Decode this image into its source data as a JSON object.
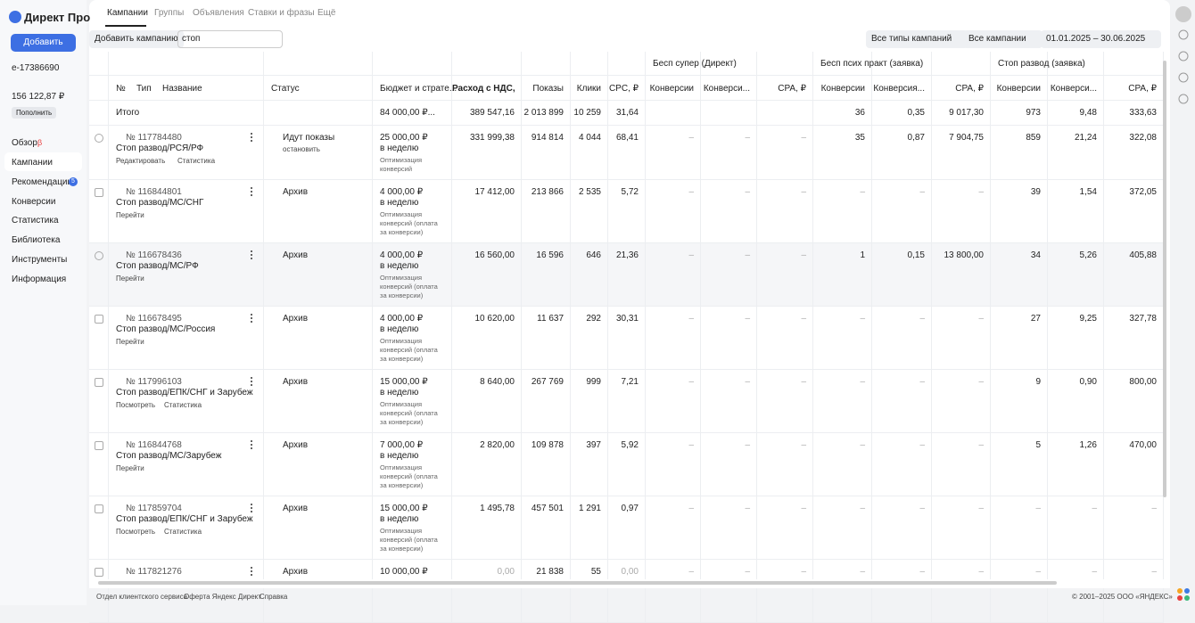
{
  "logo": "Директ Про",
  "sidebar": {
    "add_button": "Добавить",
    "account": "e-17386690",
    "balance": "156 122,87 ₽",
    "top_up": "Пополнить",
    "nav": [
      "Обзор",
      "Кампании",
      "Рекомендации",
      "Конверсии",
      "Статистика",
      "Библиотека",
      "Инструменты",
      "Информация"
    ],
    "overview_badge": "β",
    "recommendations_badge": "5"
  },
  "tabs": [
    "Кампании",
    "Группы",
    "Объявления",
    "Ставки и фразы",
    "Ещё"
  ],
  "toolbar": {
    "add_campaign": "Добавить кампанию",
    "search": "стоп",
    "campaign_types": "Все типы кампаний",
    "campaigns_filter": "Все кампании",
    "date_range": "01.01.2025 – 30.06.2025"
  },
  "table": {
    "group_headers": [
      "Бесп супер (Директ)",
      "Бесп псих практ (заявка)",
      "Стоп развод (заявка)"
    ],
    "headers": [
      "№",
      "Тип",
      "Название",
      "Статус",
      "Бюджет и страте...",
      "Расход с НДС, ₽",
      "Показы",
      "Клики",
      "CPC, ₽",
      "Конверсии",
      "Конверси...",
      "CPA, ₽",
      "Конверсии",
      "Конверсия...",
      "CPA, ₽",
      "Конверсии",
      "Конверси...",
      "CPA, ₽"
    ],
    "total": {
      "label": "Итого",
      "budget": "84 000,00 ₽...",
      "spend": "389 547,16",
      "shows": "2 013 899",
      "clicks": "10 259",
      "cpc": "31,64",
      "group2": [
        "36",
        "0,35",
        "9 017,30"
      ],
      "group3": [
        "973",
        "9,48",
        "333,63"
      ]
    },
    "rows": [
      {
        "number": "№ 117784480",
        "name": "Стоп развод/РСЯ/РФ",
        "links": [
          "Редактировать",
          "Статистика"
        ],
        "status": "Идут показы",
        "status_action": "остановить",
        "budget": "25 000,00 ₽",
        "period": "в неделю",
        "strategy": "Оптимизация конверсий",
        "cells": [
          "331 999,38",
          "914 814",
          "4 044",
          "68,41",
          "–",
          "–",
          "–",
          "35",
          "0,87",
          "7 904,75",
          "859",
          "21,24",
          "322,08"
        ]
      },
      {
        "number": "№ 116844801",
        "name": "Стоп развод/МС/СНГ",
        "links": [
          "Перейти"
        ],
        "status": "Архив",
        "budget": "4 000,00 ₽",
        "period": "в неделю",
        "strategy": "Оптимизация конверсий (оплата за конверсии)",
        "cells": [
          "17 412,00",
          "213 866",
          "2 535",
          "5,72",
          "–",
          "–",
          "–",
          "–",
          "–",
          "–",
          "39",
          "1,54",
          "372,05"
        ]
      },
      {
        "number": "№ 116678436",
        "name": "Стоп развод/МС/РФ",
        "links": [
          "Перейти"
        ],
        "status": "Архив",
        "budget": "4 000,00 ₽",
        "period": "в неделю",
        "strategy": "Оптимизация конверсий (оплата за конверсии)",
        "cells": [
          "16 560,00",
          "16 596",
          "646",
          "21,36",
          "–",
          "–",
          "–",
          "1",
          "0,15",
          "13 800,00",
          "34",
          "5,26",
          "405,88"
        ]
      },
      {
        "number": "№ 116678495",
        "name": "Стоп развод/МС/Россия",
        "links": [
          "Перейти"
        ],
        "status": "Архив",
        "budget": "4 000,00 ₽",
        "period": "в неделю",
        "strategy": "Оптимизация конверсий (оплата за конверсии)",
        "cells": [
          "10 620,00",
          "11 637",
          "292",
          "30,31",
          "–",
          "–",
          "–",
          "–",
          "–",
          "–",
          "27",
          "9,25",
          "327,78"
        ]
      },
      {
        "number": "№ 117996103",
        "name": "Стоп развод/ЕПК/СНГ и Зарубеж",
        "links": [
          "Посмотреть",
          "Статистика"
        ],
        "status": "Архив",
        "budget": "15 000,00 ₽",
        "period": "в неделю",
        "strategy": "Оптимизация конверсий (оплата за конверсии)",
        "cells": [
          "8 640,00",
          "267 769",
          "999",
          "7,21",
          "–",
          "–",
          "–",
          "–",
          "–",
          "–",
          "9",
          "0,90",
          "800,00"
        ]
      },
      {
        "number": "№ 116844768",
        "name": "Стоп развод/МС/Зарубеж",
        "links": [
          "Перейти"
        ],
        "status": "Архив",
        "budget": "7 000,00 ₽",
        "period": "в неделю",
        "strategy": "Оптимизация конверсий (оплата за конверсии)",
        "cells": [
          "2 820,00",
          "109 878",
          "397",
          "5,92",
          "–",
          "–",
          "–",
          "–",
          "–",
          "–",
          "5",
          "1,26",
          "470,00"
        ]
      },
      {
        "number": "№ 117859704",
        "name": "Стоп развод/ЕПК/СНГ и Зарубеж",
        "links": [
          "Посмотреть",
          "Статистика"
        ],
        "status": "Архив",
        "budget": "15 000,00 ₽",
        "period": "в неделю",
        "strategy": "Оптимизация конверсий (оплата за конверсии)",
        "cells": [
          "1 495,78",
          "457 501",
          "1 291",
          "0,97",
          "–",
          "–",
          "–",
          "–",
          "–",
          "–",
          "–",
          "–",
          "–"
        ]
      },
      {
        "number": "№ 117821276",
        "status": "Архив",
        "budget": "10 000,00 ₽",
        "cells": [
          "0,00",
          "21 838",
          "55",
          "0,00",
          "–",
          "–",
          "–",
          "–",
          "–",
          "–",
          "–",
          "–",
          "–"
        ]
      }
    ]
  },
  "footer": {
    "links": [
      "Отдел клиентского сервиса",
      "Оферта Яндекс Директ",
      "Справка"
    ],
    "copyright": "© 2001–2025 ООО «ЯНДЕКС»"
  }
}
